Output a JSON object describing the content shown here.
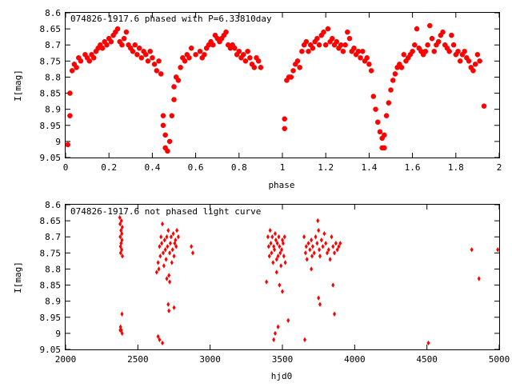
{
  "chart_data": [
    {
      "type": "scatter",
      "title": "074826-1917.6 phased with P=6.33810day",
      "xlabel": "phase",
      "ylabel": "I[mag]",
      "xlim": [
        0,
        2
      ],
      "ylim": [
        8.6,
        9.05
      ],
      "y_inverted": true,
      "grid": false,
      "marker": "star",
      "color": "#ff0000",
      "x_ticks": [
        "0",
        "0.2",
        "0.4",
        "0.6",
        "0.8",
        "1",
        "1.2",
        "1.4",
        "1.6",
        "1.8",
        "2"
      ],
      "y_ticks": [
        "8.6",
        "8.65",
        "8.7",
        "8.75",
        "8.8",
        "8.85",
        "8.9",
        "8.95",
        "9",
        "9.05"
      ],
      "points": [
        [
          0.01,
          9.01
        ],
        [
          0.02,
          8.92
        ],
        [
          0.02,
          8.85
        ],
        [
          0.03,
          8.78
        ],
        [
          0.04,
          8.76
        ],
        [
          0.05,
          8.77
        ],
        [
          0.06,
          8.74
        ],
        [
          0.07,
          8.75
        ],
        [
          0.09,
          8.73
        ],
        [
          0.1,
          8.74
        ],
        [
          0.11,
          8.75
        ],
        [
          0.12,
          8.73
        ],
        [
          0.13,
          8.74
        ],
        [
          0.14,
          8.72
        ],
        [
          0.15,
          8.71
        ],
        [
          0.16,
          8.7
        ],
        [
          0.17,
          8.71
        ],
        [
          0.18,
          8.69
        ],
        [
          0.19,
          8.7
        ],
        [
          0.2,
          8.68
        ],
        [
          0.21,
          8.69
        ],
        [
          0.22,
          8.67
        ],
        [
          0.23,
          8.66
        ],
        [
          0.24,
          8.65
        ],
        [
          0.25,
          8.69
        ],
        [
          0.26,
          8.7
        ],
        [
          0.27,
          8.68
        ],
        [
          0.28,
          8.66
        ],
        [
          0.29,
          8.7
        ],
        [
          0.3,
          8.71
        ],
        [
          0.31,
          8.72
        ],
        [
          0.32,
          8.7
        ],
        [
          0.33,
          8.73
        ],
        [
          0.34,
          8.71
        ],
        [
          0.35,
          8.74
        ],
        [
          0.36,
          8.72
        ],
        [
          0.37,
          8.73
        ],
        [
          0.38,
          8.75
        ],
        [
          0.39,
          8.72
        ],
        [
          0.4,
          8.74
        ],
        [
          0.41,
          8.76
        ],
        [
          0.42,
          8.78
        ],
        [
          0.43,
          8.75
        ],
        [
          0.44,
          8.79
        ],
        [
          0.45,
          8.92
        ],
        [
          0.45,
          8.95
        ],
        [
          0.46,
          8.98
        ],
        [
          0.46,
          9.02
        ],
        [
          0.47,
          9.03
        ],
        [
          0.48,
          9.0
        ],
        [
          0.49,
          8.92
        ],
        [
          0.5,
          8.87
        ],
        [
          0.5,
          8.83
        ],
        [
          0.51,
          8.8
        ],
        [
          0.52,
          8.81
        ],
        [
          0.53,
          8.77
        ],
        [
          0.54,
          8.74
        ],
        [
          0.55,
          8.75
        ],
        [
          0.56,
          8.73
        ],
        [
          0.57,
          8.74
        ],
        [
          0.58,
          8.71
        ],
        [
          0.6,
          8.73
        ],
        [
          0.62,
          8.72
        ],
        [
          0.63,
          8.74
        ],
        [
          0.64,
          8.73
        ],
        [
          0.65,
          8.71
        ],
        [
          0.66,
          8.7
        ],
        [
          0.67,
          8.69
        ],
        [
          0.68,
          8.7
        ],
        [
          0.69,
          8.67
        ],
        [
          0.7,
          8.68
        ],
        [
          0.71,
          8.69
        ],
        [
          0.72,
          8.68
        ],
        [
          0.73,
          8.67
        ],
        [
          0.74,
          8.66
        ],
        [
          0.75,
          8.7
        ],
        [
          0.76,
          8.71
        ],
        [
          0.77,
          8.7
        ],
        [
          0.78,
          8.71
        ],
        [
          0.79,
          8.73
        ],
        [
          0.8,
          8.72
        ],
        [
          0.81,
          8.74
        ],
        [
          0.82,
          8.73
        ],
        [
          0.83,
          8.75
        ],
        [
          0.84,
          8.72
        ],
        [
          0.85,
          8.74
        ],
        [
          0.86,
          8.76
        ],
        [
          0.87,
          8.77
        ],
        [
          0.88,
          8.74
        ],
        [
          0.89,
          8.75
        ],
        [
          0.9,
          8.77
        ],
        [
          1.01,
          8.93
        ],
        [
          1.01,
          8.96
        ],
        [
          1.02,
          8.81
        ],
        [
          1.03,
          8.8
        ],
        [
          1.04,
          8.8
        ],
        [
          1.05,
          8.78
        ],
        [
          1.06,
          8.76
        ],
        [
          1.07,
          8.75
        ],
        [
          1.08,
          8.77
        ],
        [
          1.09,
          8.72
        ],
        [
          1.1,
          8.7
        ],
        [
          1.11,
          8.69
        ],
        [
          1.12,
          8.72
        ],
        [
          1.13,
          8.7
        ],
        [
          1.14,
          8.71
        ],
        [
          1.15,
          8.69
        ],
        [
          1.16,
          8.68
        ],
        [
          1.17,
          8.7
        ],
        [
          1.18,
          8.67
        ],
        [
          1.19,
          8.66
        ],
        [
          1.2,
          8.7
        ],
        [
          1.21,
          8.65
        ],
        [
          1.22,
          8.69
        ],
        [
          1.23,
          8.68
        ],
        [
          1.24,
          8.7
        ],
        [
          1.25,
          8.69
        ],
        [
          1.26,
          8.71
        ],
        [
          1.27,
          8.7
        ],
        [
          1.28,
          8.72
        ],
        [
          1.29,
          8.7
        ],
        [
          1.3,
          8.66
        ],
        [
          1.31,
          8.68
        ],
        [
          1.32,
          8.72
        ],
        [
          1.33,
          8.71
        ],
        [
          1.34,
          8.73
        ],
        [
          1.35,
          8.72
        ],
        [
          1.36,
          8.74
        ],
        [
          1.37,
          8.72
        ],
        [
          1.38,
          8.75
        ],
        [
          1.39,
          8.74
        ],
        [
          1.4,
          8.76
        ],
        [
          1.41,
          8.78
        ],
        [
          1.42,
          8.86
        ],
        [
          1.43,
          8.9
        ],
        [
          1.44,
          8.94
        ],
        [
          1.45,
          8.97
        ],
        [
          1.46,
          8.99
        ],
        [
          1.46,
          9.02
        ],
        [
          1.47,
          9.02
        ],
        [
          1.47,
          8.98
        ],
        [
          1.48,
          8.92
        ],
        [
          1.49,
          8.88
        ],
        [
          1.5,
          8.84
        ],
        [
          1.51,
          8.81
        ],
        [
          1.52,
          8.79
        ],
        [
          1.53,
          8.77
        ],
        [
          1.54,
          8.76
        ],
        [
          1.55,
          8.77
        ],
        [
          1.56,
          8.73
        ],
        [
          1.57,
          8.75
        ],
        [
          1.58,
          8.74
        ],
        [
          1.59,
          8.73
        ],
        [
          1.6,
          8.72
        ],
        [
          1.61,
          8.7
        ],
        [
          1.62,
          8.65
        ],
        [
          1.63,
          8.71
        ],
        [
          1.64,
          8.72
        ],
        [
          1.65,
          8.73
        ],
        [
          1.66,
          8.72
        ],
        [
          1.67,
          8.7
        ],
        [
          1.68,
          8.64
        ],
        [
          1.69,
          8.68
        ],
        [
          1.7,
          8.72
        ],
        [
          1.71,
          8.7
        ],
        [
          1.72,
          8.69
        ],
        [
          1.73,
          8.67
        ],
        [
          1.74,
          8.66
        ],
        [
          1.75,
          8.7
        ],
        [
          1.76,
          8.71
        ],
        [
          1.77,
          8.72
        ],
        [
          1.78,
          8.67
        ],
        [
          1.79,
          8.7
        ],
        [
          1.8,
          8.73
        ],
        [
          1.81,
          8.72
        ],
        [
          1.82,
          8.75
        ],
        [
          1.83,
          8.73
        ],
        [
          1.84,
          8.72
        ],
        [
          1.85,
          8.74
        ],
        [
          1.86,
          8.75
        ],
        [
          1.87,
          8.77
        ],
        [
          1.88,
          8.78
        ],
        [
          1.89,
          8.76
        ],
        [
          1.9,
          8.73
        ],
        [
          1.91,
          8.75
        ],
        [
          1.93,
          8.89
        ]
      ]
    },
    {
      "type": "scatter",
      "title": "074826-1917.6 not phased light curve",
      "xlabel": "hjd0",
      "ylabel": "I[mag]",
      "xlim": [
        2000,
        5000
      ],
      "ylim": [
        8.6,
        9.05
      ],
      "y_inverted": true,
      "grid": false,
      "marker": "diamond",
      "color": "#ff0000",
      "x_ticks": [
        "2000",
        "2500",
        "3000",
        "3500",
        "4000",
        "4500",
        "5000"
      ],
      "y_ticks": [
        "8.6",
        "8.65",
        "8.7",
        "8.75",
        "8.8",
        "8.85",
        "8.9",
        "8.95",
        "9",
        "9.05"
      ],
      "points": [
        [
          2375,
          8.64
        ],
        [
          2377,
          8.66
        ],
        [
          2378,
          8.7
        ],
        [
          2380,
          8.73
        ],
        [
          2381,
          8.75
        ],
        [
          2383,
          8.68
        ],
        [
          2384,
          8.72
        ],
        [
          2386,
          8.65
        ],
        [
          2388,
          8.74
        ],
        [
          2389,
          8.69
        ],
        [
          2390,
          8.71
        ],
        [
          2392,
          8.67
        ],
        [
          2393,
          8.76
        ],
        [
          2378,
          8.99
        ],
        [
          2380,
          8.98
        ],
        [
          2385,
          8.99
        ],
        [
          2390,
          8.94
        ],
        [
          2391,
          9.0
        ],
        [
          2630,
          8.81
        ],
        [
          2640,
          8.78
        ],
        [
          2645,
          8.8
        ],
        [
          2650,
          8.73
        ],
        [
          2655,
          8.76
        ],
        [
          2660,
          8.7
        ],
        [
          2665,
          8.72
        ],
        [
          2670,
          8.66
        ],
        [
          2675,
          8.75
        ],
        [
          2680,
          8.79
        ],
        [
          2685,
          8.71
        ],
        [
          2690,
          8.74
        ],
        [
          2695,
          8.77
        ],
        [
          2700,
          8.7
        ],
        [
          2705,
          8.73
        ],
        [
          2710,
          8.68
        ],
        [
          2715,
          8.82
        ],
        [
          2720,
          8.75
        ],
        [
          2725,
          8.72
        ],
        [
          2730,
          8.7
        ],
        [
          2735,
          8.78
        ],
        [
          2740,
          8.74
        ],
        [
          2745,
          8.69
        ],
        [
          2750,
          8.76
        ],
        [
          2755,
          8.72
        ],
        [
          2760,
          8.71
        ],
        [
          2765,
          8.73
        ],
        [
          2770,
          8.68
        ],
        [
          2780,
          8.7
        ],
        [
          2870,
          8.73
        ],
        [
          2880,
          8.75
        ],
        [
          2700,
          8.83
        ],
        [
          2720,
          8.84
        ],
        [
          2710,
          8.91
        ],
        [
          2715,
          8.93
        ],
        [
          2750,
          8.92
        ],
        [
          2640,
          9.01
        ],
        [
          2650,
          9.02
        ],
        [
          2670,
          9.03
        ],
        [
          3390,
          8.84
        ],
        [
          3400,
          8.7
        ],
        [
          3405,
          8.73
        ],
        [
          3410,
          8.76
        ],
        [
          3415,
          8.68
        ],
        [
          3420,
          8.72
        ],
        [
          3425,
          8.75
        ],
        [
          3430,
          8.7
        ],
        [
          3435,
          8.78
        ],
        [
          3440,
          8.73
        ],
        [
          3445,
          8.74
        ],
        [
          3450,
          8.69
        ],
        [
          3455,
          8.71
        ],
        [
          3460,
          8.77
        ],
        [
          3465,
          8.72
        ],
        [
          3470,
          8.76
        ],
        [
          3475,
          8.7
        ],
        [
          3480,
          8.73
        ],
        [
          3485,
          8.75
        ],
        [
          3490,
          8.79
        ],
        [
          3495,
          8.74
        ],
        [
          3500,
          8.71
        ],
        [
          3505,
          8.72
        ],
        [
          3510,
          8.76
        ],
        [
          3515,
          8.7
        ],
        [
          3520,
          8.78
        ],
        [
          3460,
          8.81
        ],
        [
          3480,
          8.85
        ],
        [
          3500,
          8.87
        ],
        [
          3470,
          8.98
        ],
        [
          3450,
          9.0
        ],
        [
          3540,
          8.96
        ],
        [
          3440,
          9.02
        ],
        [
          3650,
          8.7
        ],
        [
          3660,
          8.75
        ],
        [
          3665,
          8.73
        ],
        [
          3670,
          8.77
        ],
        [
          3680,
          8.72
        ],
        [
          3690,
          8.74
        ],
        [
          3700,
          8.71
        ],
        [
          3705,
          8.76
        ],
        [
          3710,
          8.73
        ],
        [
          3720,
          8.75
        ],
        [
          3730,
          8.7
        ],
        [
          3740,
          8.72
        ],
        [
          3745,
          8.65
        ],
        [
          3750,
          8.68
        ],
        [
          3755,
          8.74
        ],
        [
          3760,
          8.76
        ],
        [
          3770,
          8.71
        ],
        [
          3780,
          8.73
        ],
        [
          3790,
          8.69
        ],
        [
          3800,
          8.72
        ],
        [
          3810,
          8.75
        ],
        [
          3820,
          8.74
        ],
        [
          3830,
          8.77
        ],
        [
          3840,
          8.7
        ],
        [
          3850,
          8.73
        ],
        [
          3860,
          8.75
        ],
        [
          3870,
          8.72
        ],
        [
          3880,
          8.74
        ],
        [
          3890,
          8.73
        ],
        [
          3900,
          8.72
        ],
        [
          3700,
          8.8
        ],
        [
          3750,
          8.89
        ],
        [
          3760,
          8.91
        ],
        [
          3850,
          8.85
        ],
        [
          3860,
          8.94
        ],
        [
          3655,
          9.02
        ],
        [
          4510,
          9.03
        ],
        [
          4810,
          8.74
        ],
        [
          4860,
          8.83
        ],
        [
          4990,
          8.74
        ]
      ]
    }
  ]
}
